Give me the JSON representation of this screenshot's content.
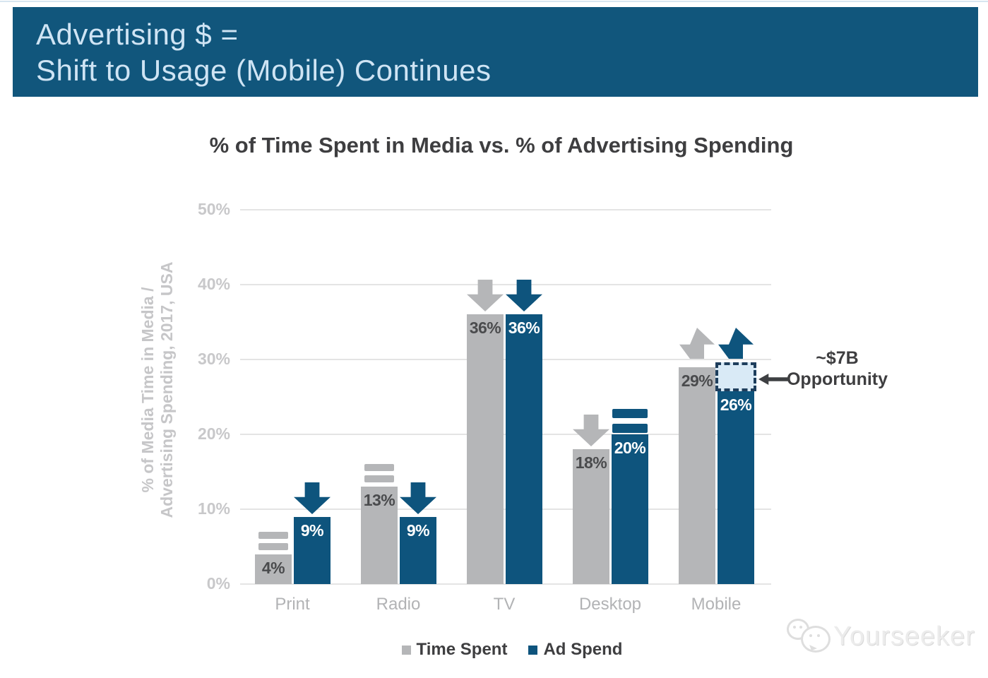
{
  "banner": {
    "line1": "Advertising $ =",
    "line2": "Shift to Usage (Mobile) Continues"
  },
  "chart_data": {
    "type": "bar",
    "title": "% of Time Spent in Media vs. % of Advertising Spending",
    "ylabel": [
      "% of Media Time in Media /",
      "Advertising Spending, 2017, USA"
    ],
    "categories": [
      "Print",
      "Radio",
      "TV",
      "Desktop",
      "Mobile"
    ],
    "series": [
      {
        "name": "Time Spent",
        "color": "#b5b6b8",
        "values": [
          4,
          13,
          36,
          18,
          29
        ],
        "value_labels": [
          "4%",
          "13%",
          "36%",
          "18%",
          "29%"
        ],
        "trends": [
          "equal",
          "equal",
          "down",
          "down",
          "up"
        ]
      },
      {
        "name": "Ad Spend",
        "color": "#0e547d",
        "values": [
          9,
          9,
          36,
          20,
          26
        ],
        "value_labels": [
          "9%",
          "9%",
          "36%",
          "20%",
          "26%"
        ],
        "trends": [
          "down",
          "down",
          "down",
          "equal",
          "up"
        ]
      }
    ],
    "yticks": [
      0,
      10,
      20,
      30,
      40,
      50
    ],
    "ytick_labels": [
      "0%",
      "10%",
      "20%",
      "30%",
      "40%",
      "50%"
    ],
    "ylim": [
      0,
      50
    ],
    "grid": true,
    "legend_position": "bottom",
    "annotation": {
      "line1": "~$7B",
      "line2": "Opportunity",
      "arrow": "left",
      "points_to": "Mobile Ad Spend gap"
    },
    "opportunity_gap": {
      "category": "Mobile",
      "series": "Ad Spend",
      "from": 26,
      "to": 29,
      "fill": "#d9eaf6",
      "border": "#1e3e5c"
    }
  },
  "colors": {
    "banner_bg": "#11567c",
    "banner_text": "#cfe4f4",
    "grid": "#e4e4e4",
    "tick_text": "#c8c8ca",
    "category_text": "#b2b3b5",
    "axis_label_text": "#c6c6c8",
    "dark_text": "#3e3e40",
    "label_on_gray": "#4a4b4d",
    "label_on_blue": "#ffffff"
  },
  "watermark": {
    "text": "Yourseeker",
    "logo": "wechat-bubbles-icon"
  }
}
